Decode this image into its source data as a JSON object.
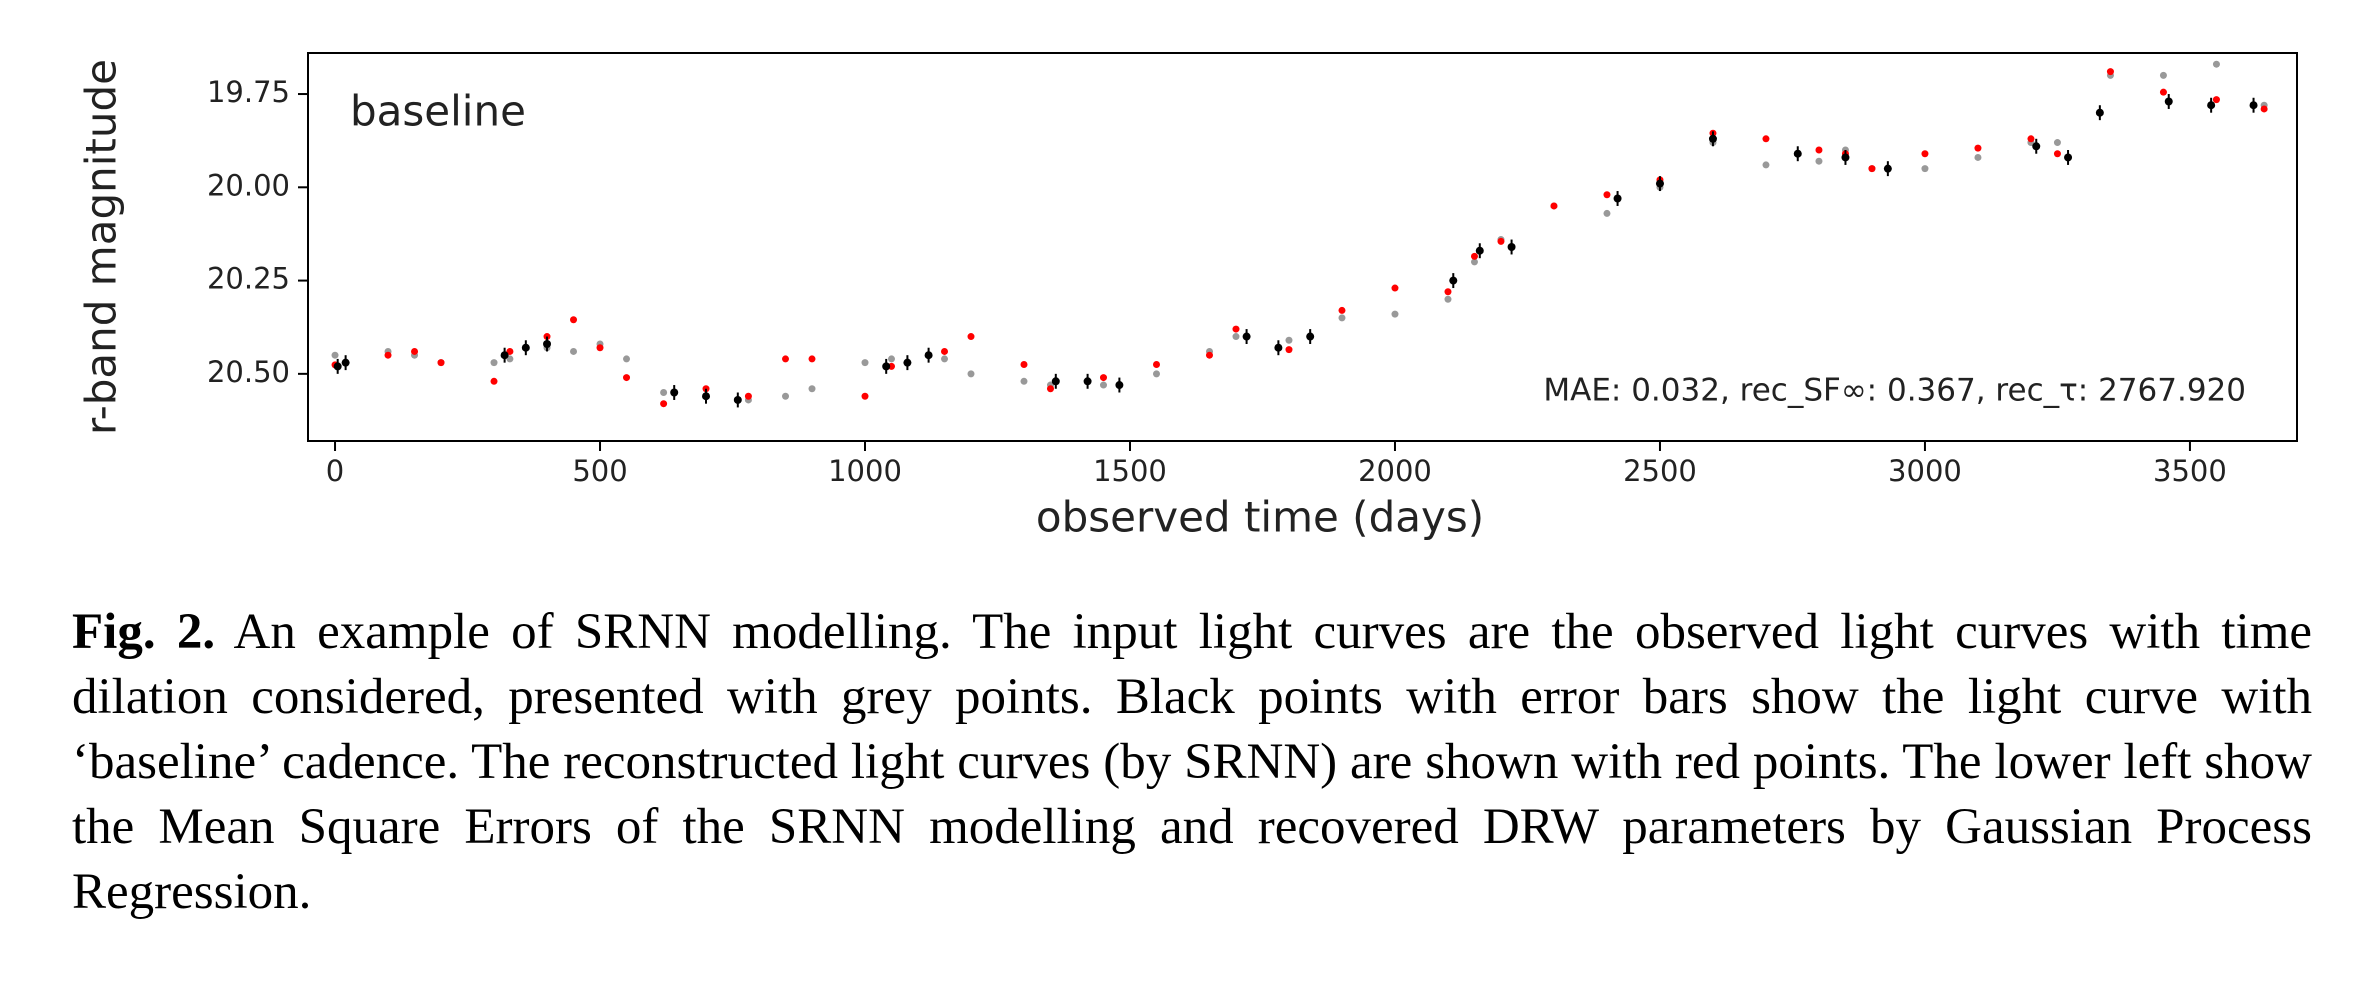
{
  "chart_data": {
    "type": "scatter",
    "annotation": "baseline",
    "metrics": "MAE: 0.032, rec_SF∞: 0.367, rec_τ: 2767.920",
    "x_label": "observed time (days)",
    "y_label": "r-band magnitude",
    "xlim": [
      -51,
      3702
    ],
    "xticks": [
      0,
      500,
      1000,
      1500,
      2000,
      2500,
      3000,
      3500
    ],
    "ylim": [
      20.68,
      19.64
    ],
    "yticks": [
      19.75,
      {
        "value": 20.0,
        "label": "20.00"
      },
      20.25,
      {
        "value": 20.5,
        "label": "20.50"
      }
    ],
    "series": [
      {
        "color": "#999999",
        "x": [
          0,
          100,
          150,
          200,
          300,
          330,
          400,
          450,
          500,
          550,
          620,
          700,
          780,
          850,
          900,
          1000,
          1050,
          1150,
          1200,
          1300,
          1350,
          1450,
          1550,
          1650,
          1700,
          1800,
          1900,
          2000,
          2100,
          2150,
          2200,
          2300,
          2400,
          2500,
          2600,
          2700,
          2800,
          2850,
          2900,
          3000,
          3100,
          3200,
          3250,
          3350,
          3450,
          3550,
          3640
        ],
        "values": [
          20.45,
          20.44,
          20.45,
          20.47,
          20.47,
          20.46,
          20.43,
          20.44,
          20.42,
          20.46,
          20.55,
          20.56,
          20.57,
          20.56,
          20.54,
          20.47,
          20.46,
          20.46,
          20.5,
          20.52,
          20.53,
          20.53,
          20.5,
          20.44,
          20.4,
          20.41,
          20.35,
          20.34,
          20.3,
          20.2,
          20.14,
          20.05,
          20.07,
          20.0,
          19.88,
          19.94,
          19.93,
          19.9,
          19.95,
          19.95,
          19.92,
          19.88,
          19.88,
          19.7,
          19.7,
          19.67,
          19.78
        ]
      },
      {
        "color": "#ff0000",
        "x": [
          0,
          100,
          150,
          200,
          300,
          330,
          400,
          450,
          500,
          550,
          620,
          700,
          780,
          850,
          900,
          1000,
          1050,
          1150,
          1200,
          1300,
          1350,
          1450,
          1550,
          1650,
          1700,
          1800,
          1900,
          2000,
          2100,
          2150,
          2200,
          2300,
          2400,
          2500,
          2600,
          2700,
          2800,
          2850,
          2900,
          3000,
          3100,
          3200,
          3250,
          3350,
          3450,
          3550,
          3640
        ],
        "values": [
          20.476,
          20.45,
          20.44,
          20.47,
          20.52,
          20.44,
          20.4,
          20.355,
          20.43,
          20.51,
          20.58,
          20.54,
          20.56,
          20.46,
          20.46,
          20.56,
          20.48,
          20.44,
          20.4,
          20.475,
          20.54,
          20.51,
          20.475,
          20.45,
          20.38,
          20.435,
          20.33,
          20.27,
          20.28,
          20.185,
          20.145,
          20.05,
          20.02,
          19.98,
          19.855,
          19.87,
          19.9,
          19.91,
          19.95,
          19.91,
          19.895,
          19.87,
          19.91,
          19.69,
          19.745,
          19.765,
          19.79
        ]
      },
      {
        "color": "#000000",
        "x": [
          5,
          20,
          320,
          360,
          400,
          640,
          700,
          760,
          1040,
          1080,
          1120,
          1360,
          1420,
          1480,
          1720,
          1780,
          1840,
          2110,
          2160,
          2220,
          2420,
          2500,
          2600,
          2760,
          2850,
          2930,
          3210,
          3270,
          3330,
          3460,
          3540,
          3620
        ],
        "values": [
          20.48,
          20.47,
          20.45,
          20.43,
          20.42,
          20.55,
          20.56,
          20.57,
          20.48,
          20.47,
          20.45,
          20.52,
          20.52,
          20.53,
          20.4,
          20.43,
          20.4,
          20.25,
          20.17,
          20.16,
          20.03,
          19.99,
          19.87,
          19.91,
          19.92,
          19.95,
          19.89,
          19.92,
          19.8,
          19.77,
          19.78,
          19.78
        ],
        "errors": [
          0.02,
          0.02,
          0.02,
          0.02,
          0.02,
          0.02,
          0.02,
          0.02,
          0.02,
          0.02,
          0.02,
          0.02,
          0.02,
          0.02,
          0.02,
          0.02,
          0.02,
          0.02,
          0.02,
          0.02,
          0.02,
          0.02,
          0.02,
          0.02,
          0.02,
          0.02,
          0.02,
          0.02,
          0.02,
          0.02,
          0.02,
          0.02
        ]
      }
    ]
  },
  "caption": {
    "label": "Fig. 2.",
    "text": "An example of SRNN modelling. The input light curves are the observed light curves with time dilation considered, presented with grey points. Black points with error bars show the light curve with ‘baseline’ cadence. The reconstructed light curves (by SRNN) are shown with red points. The lower left show the Mean Square Errors of the SRNN modelling and recovered DRW parameters by Gaussian Process Regression."
  }
}
